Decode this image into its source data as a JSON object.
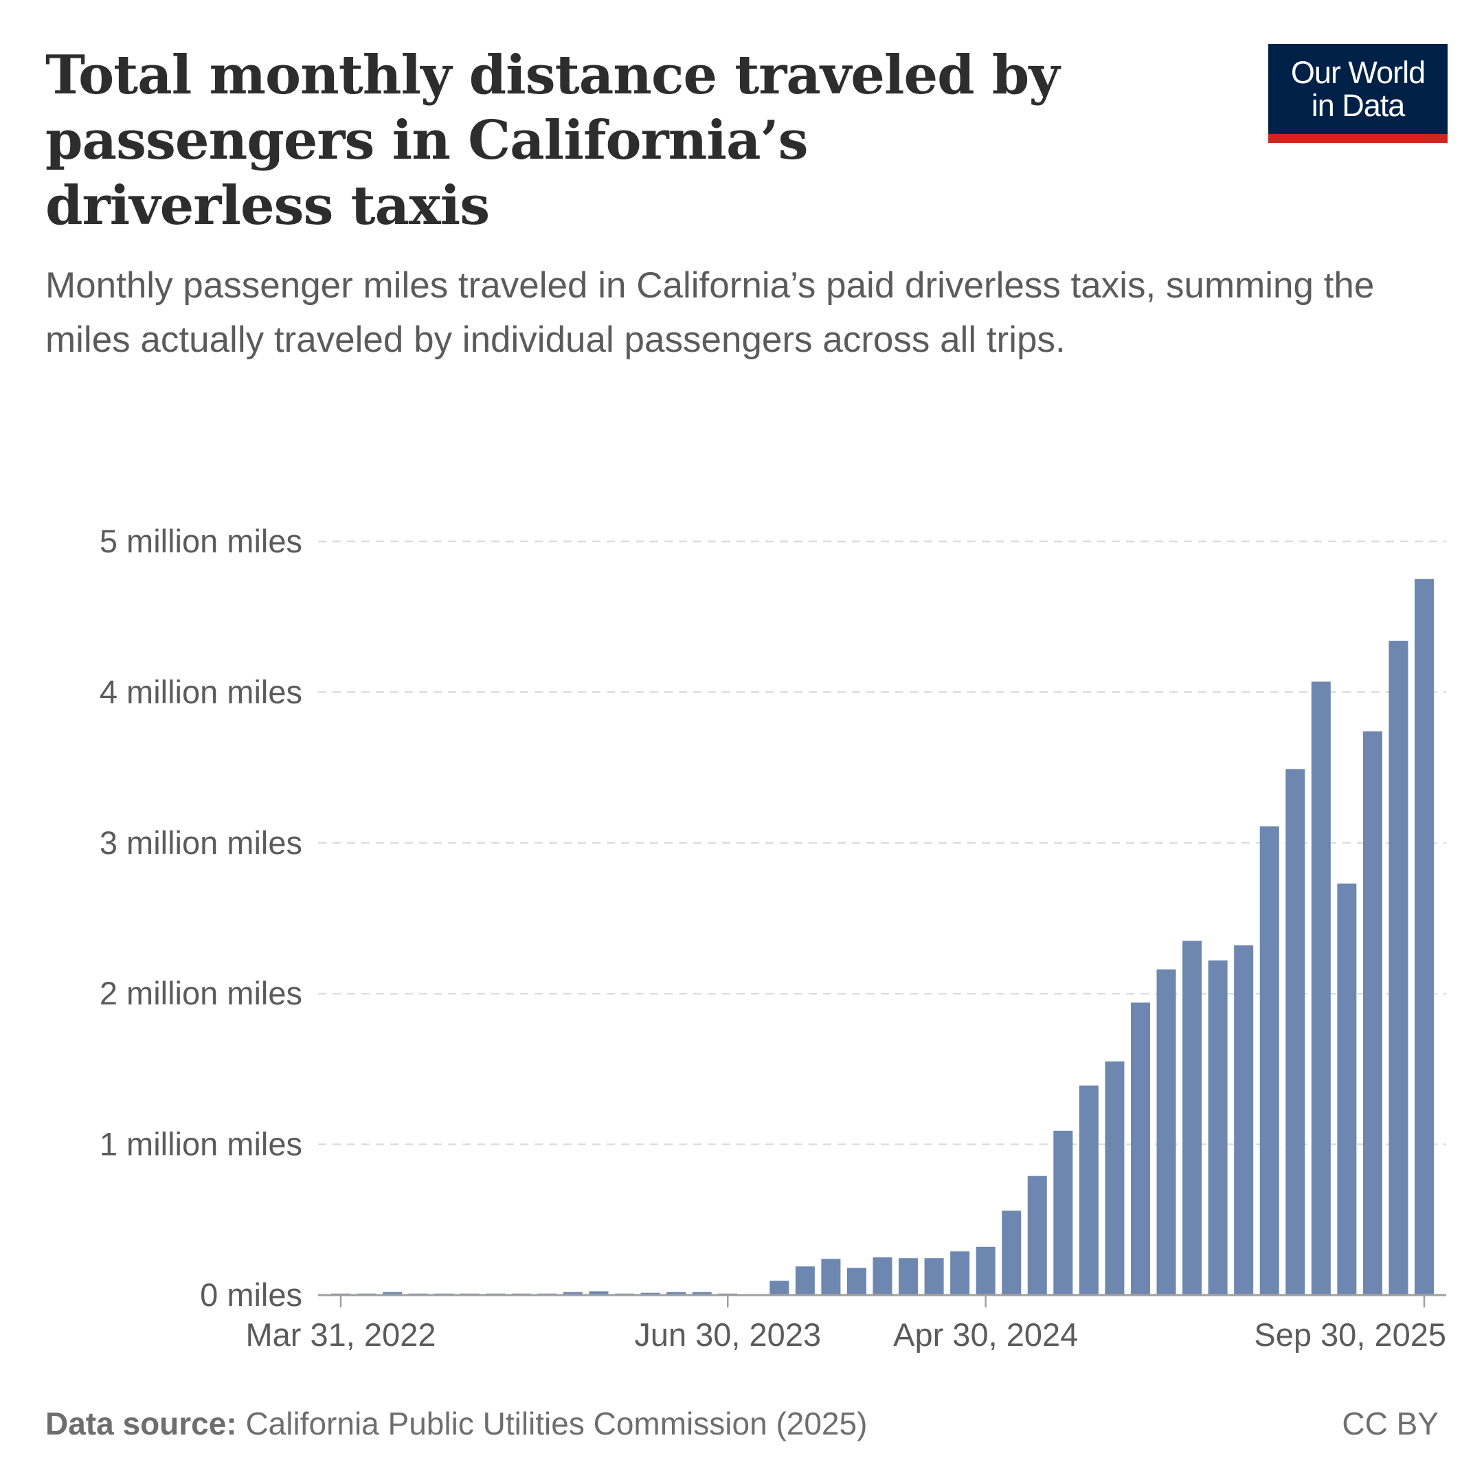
{
  "header": {
    "title": "Total monthly distance traveled by passengers in California’s driverless taxis",
    "subtitle": "Monthly passenger miles traveled in California’s paid driverless taxis, summing the miles actually traveled by individual passengers across all trips.",
    "logo_line1": "Our World",
    "logo_line2": "in Data"
  },
  "footer": {
    "source_label": "Data source:",
    "source_text": "California Public Utilities Commission (2025)",
    "license": "CC BY"
  },
  "colors": {
    "bar": "#6d87b0",
    "logo_bg": "#002147",
    "logo_accent": "#ce261e",
    "grid": "#dddddd",
    "axis": "#a0a0a0"
  },
  "chart_data": {
    "type": "bar",
    "xlabel": "",
    "ylabel": "",
    "x_start": "Mar 31, 2022",
    "x_end": "Sep 30, 2025",
    "frequency": "monthly",
    "categories": [
      "Mar 2022",
      "Apr 2022",
      "May 2022",
      "Jun 2022",
      "Jul 2022",
      "Aug 2022",
      "Sep 2022",
      "Oct 2022",
      "Nov 2022",
      "Dec 2022",
      "Jan 2023",
      "Feb 2023",
      "Mar 2023",
      "Apr 2023",
      "May 2023",
      "Jun 2023",
      "Jul 2023",
      "Aug 2023",
      "Sep 2023",
      "Oct 2023",
      "Nov 2023",
      "Dec 2023",
      "Jan 2024",
      "Feb 2024",
      "Mar 2024",
      "Apr 2024",
      "May 2024",
      "Jun 2024",
      "Jul 2024",
      "Aug 2024",
      "Sep 2024",
      "Oct 2024",
      "Nov 2024",
      "Dec 2024",
      "Jan 2025",
      "Feb 2025",
      "Mar 2025",
      "Apr 2025",
      "May 2025",
      "Jun 2025",
      "Jul 2025",
      "Aug 2025",
      "Sep 2025"
    ],
    "values_million_miles": [
      0.01,
      0.01,
      0.02,
      0.01,
      0.01,
      0.01,
      0.01,
      0.01,
      0.01,
      0.02,
      0.025,
      0.01,
      0.015,
      0.02,
      0.02,
      0.01,
      0.005,
      0.095,
      0.19,
      0.24,
      0.18,
      0.25,
      0.245,
      0.245,
      0.29,
      0.32,
      0.56,
      0.79,
      1.09,
      1.39,
      1.55,
      1.94,
      2.16,
      2.35,
      2.22,
      2.32,
      3.11,
      3.49,
      4.07,
      2.73,
      3.74,
      4.34,
      4.75
    ],
    "ylim": [
      0,
      5
    ],
    "y_ticks": [
      0,
      1,
      2,
      3,
      4,
      5
    ],
    "y_tick_labels": [
      "0 miles",
      "1 million miles",
      "2 million miles",
      "3 million miles",
      "4 million miles",
      "5 million miles"
    ],
    "x_ticks": [
      {
        "index": 0,
        "label": "Mar 31, 2022"
      },
      {
        "index": 15,
        "label": "Jun 30, 2023"
      },
      {
        "index": 25,
        "label": "Apr 30, 2024"
      },
      {
        "index": 42,
        "label": "Sep 30, 2025"
      }
    ],
    "grid": "horizontal dashed",
    "legend": "none"
  }
}
